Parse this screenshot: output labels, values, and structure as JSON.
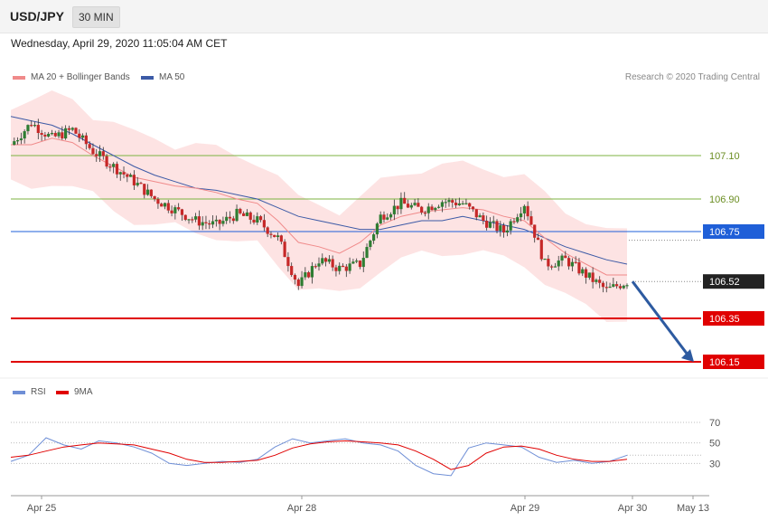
{
  "header": {
    "symbol": "USD/JPY",
    "timeframe": "30 MIN"
  },
  "timestamp": "Wednesday, April 29, 2020 11:05:04 AM CET",
  "legend": {
    "ma20": "MA 20 + Bollinger Bands",
    "ma50": "MA 50"
  },
  "copyright": "Research © 2020 Trading Central",
  "rsi_legend": {
    "rsi": "RSI",
    "ma": "9MA"
  },
  "colors": {
    "up": "#2e7d32",
    "down": "#c62828",
    "ma20": "#f08a8a",
    "ma50": "#3c5aa6",
    "band": "#fde2e2",
    "support": "#e00000",
    "pivot": "#1f5fd8",
    "green_level": "#7cb342",
    "current": "#222222",
    "arrow": "#2d5aa0",
    "rsi": "#6f8fd6",
    "rsi_ma": "#e00000"
  },
  "chart_data": {
    "type": "candlestick",
    "title": "USD/JPY",
    "timeframe": "30 MIN",
    "x_ticks": [
      "Apr 25",
      "Apr 28",
      "Apr 29",
      "Apr 30",
      "May 13"
    ],
    "y_range": [
      106.1,
      107.4
    ],
    "levels": [
      {
        "label": "107.10",
        "value": 107.1,
        "kind": "resistance"
      },
      {
        "label": "106.90",
        "value": 106.9,
        "kind": "resistance"
      },
      {
        "label": "106.75",
        "value": 106.75,
        "kind": "pivot"
      },
      {
        "label": "106.52",
        "value": 106.52,
        "kind": "current"
      },
      {
        "label": "106.35",
        "value": 106.35,
        "kind": "support"
      },
      {
        "label": "106.15",
        "value": 106.15,
        "kind": "support"
      }
    ],
    "close": [
      107.15,
      107.25,
      107.18,
      107.22,
      107.12,
      107.05,
      106.98,
      106.9,
      106.85,
      106.8,
      106.78,
      106.83,
      106.8,
      106.72,
      106.5,
      106.62,
      106.58,
      106.6,
      106.82,
      106.88,
      106.85,
      106.89,
      106.88,
      106.8,
      106.75,
      106.88,
      106.6,
      106.62,
      106.55,
      106.48,
      106.52
    ],
    "ma20": [
      107.15,
      107.15,
      107.18,
      107.16,
      107.1,
      107.05,
      107.0,
      106.98,
      106.96,
      106.95,
      106.93,
      106.9,
      106.88,
      106.8,
      106.7,
      106.68,
      106.65,
      106.7,
      106.78,
      106.82,
      106.84,
      106.85,
      106.86,
      106.85,
      106.82,
      106.8,
      106.72,
      106.65,
      106.6,
      106.55,
      106.55
    ],
    "ma50": [
      107.28,
      107.26,
      107.24,
      107.2,
      107.15,
      107.1,
      107.05,
      107.01,
      106.98,
      106.95,
      106.94,
      106.92,
      106.9,
      106.86,
      106.82,
      106.8,
      106.78,
      106.76,
      106.76,
      106.78,
      106.8,
      106.8,
      106.82,
      106.8,
      106.78,
      106.76,
      106.72,
      106.68,
      106.65,
      106.62,
      106.6
    ],
    "rsi": {
      "levels": [
        {
          "label": "70",
          "value": 70
        },
        {
          "label": "50",
          "value": 50
        },
        {
          "label": "30",
          "value": 30
        }
      ],
      "range": [
        10,
        85
      ],
      "rsi": [
        32,
        38,
        55,
        48,
        44,
        52,
        50,
        46,
        40,
        30,
        28,
        30,
        32,
        31,
        34,
        46,
        54,
        50,
        52,
        54,
        50,
        48,
        42,
        28,
        20,
        18,
        45,
        50,
        48,
        46,
        36,
        31,
        33,
        30,
        32,
        38
      ],
      "ma9": [
        36,
        38,
        42,
        46,
        48,
        50,
        49,
        48,
        44,
        40,
        34,
        31,
        31,
        32,
        33,
        38,
        45,
        49,
        51,
        52,
        51,
        50,
        48,
        42,
        34,
        24,
        28,
        40,
        46,
        47,
        44,
        38,
        34,
        32,
        32,
        34
      ]
    }
  }
}
